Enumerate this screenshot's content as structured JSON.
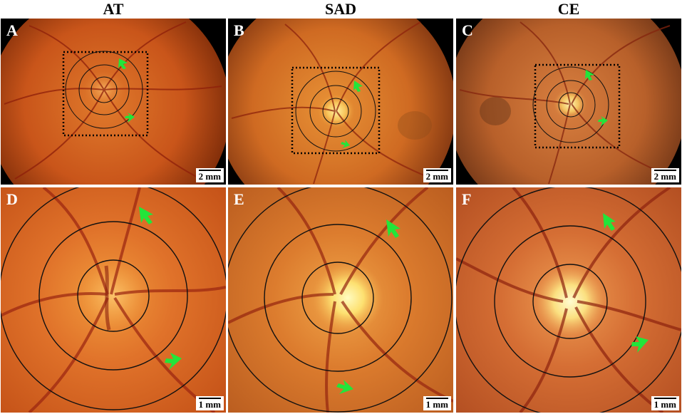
{
  "columns": [
    {
      "title": "AT"
    },
    {
      "title": "SAD"
    },
    {
      "title": "CE"
    }
  ],
  "panels": [
    {
      "letter": "A",
      "scale": "2 mm",
      "view": "overview"
    },
    {
      "letter": "B",
      "scale": "2 mm",
      "view": "overview"
    },
    {
      "letter": "C",
      "scale": "2 mm",
      "view": "overview"
    },
    {
      "letter": "D",
      "scale": "1 mm",
      "view": "zoom"
    },
    {
      "letter": "E",
      "scale": "1 mm",
      "view": "zoom"
    },
    {
      "letter": "F",
      "scale": "1 mm",
      "view": "zoom"
    }
  ],
  "colors": {
    "arrow": "#22e53a",
    "ring": "#111111",
    "box": "#000000",
    "fundus_at": "#d2571b",
    "fundus_sad": "#cf6a22",
    "fundus_ce": "#c8612a"
  }
}
